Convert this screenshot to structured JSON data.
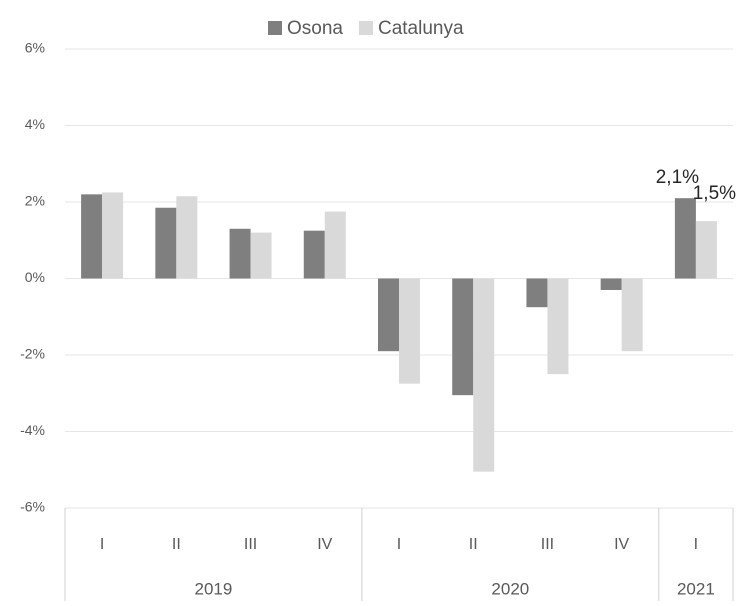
{
  "chart_data": {
    "type": "bar",
    "groups": [
      {
        "label": "2019",
        "categories": [
          "I",
          "II",
          "III",
          "IV"
        ]
      },
      {
        "label": "2020",
        "categories": [
          "I",
          "II",
          "III",
          "IV"
        ]
      },
      {
        "label": "2021",
        "categories": [
          "I"
        ]
      }
    ],
    "series": [
      {
        "name": "Osona",
        "color": "#7f7f7f",
        "values": [
          2.2,
          1.85,
          1.3,
          1.25,
          -1.9,
          -3.05,
          -0.75,
          -0.3,
          2.1
        ],
        "value_labels": [
          null,
          null,
          null,
          null,
          null,
          null,
          null,
          null,
          "2,1%"
        ]
      },
      {
        "name": "Catalunya",
        "color": "#d9d9d9",
        "values": [
          2.25,
          2.15,
          1.2,
          1.75,
          -2.75,
          -5.05,
          -2.5,
          -1.9,
          1.5
        ],
        "value_labels": [
          null,
          null,
          null,
          null,
          null,
          null,
          null,
          null,
          "1,5%"
        ]
      }
    ],
    "ylim": [
      -6,
      6
    ],
    "yticks": [
      {
        "value": -6,
        "label": "-6%"
      },
      {
        "value": -4,
        "label": "-4%"
      },
      {
        "value": -2,
        "label": "-2%"
      },
      {
        "value": 0,
        "label": "0%"
      },
      {
        "value": 2,
        "label": "2%"
      },
      {
        "value": 4,
        "label": "4%"
      },
      {
        "value": 6,
        "label": "6%"
      }
    ],
    "grid": true,
    "legend": "top"
  }
}
